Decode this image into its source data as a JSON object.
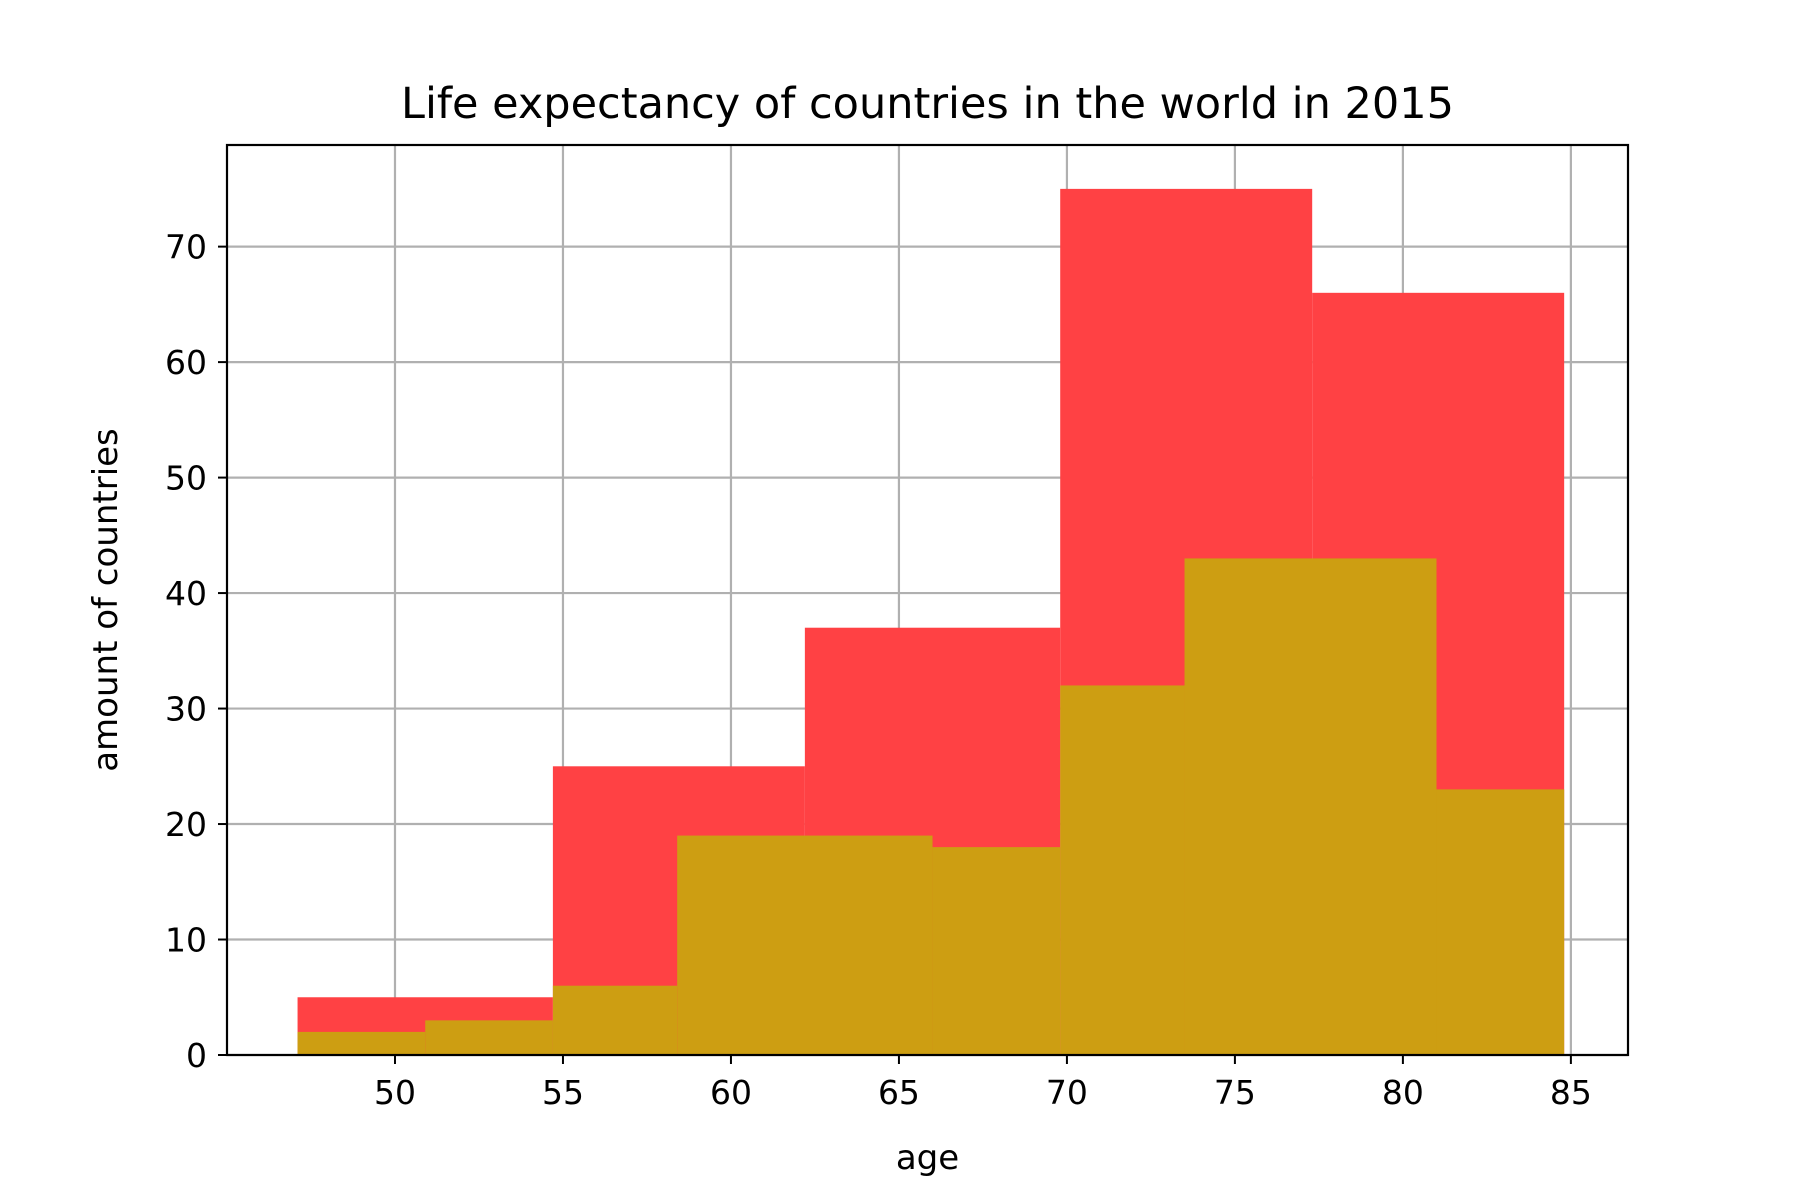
{
  "chart_data": {
    "type": "bar",
    "chart_kind": "histogram",
    "title": "Life expectancy of countries in the world in 2015",
    "xlabel": "age",
    "ylabel": "amount of countries",
    "xlim": [
      45.0,
      86.7
    ],
    "ylim": [
      0,
      78.8
    ],
    "xticks": [
      50,
      55,
      60,
      65,
      70,
      75,
      80,
      85
    ],
    "yticks": [
      0,
      10,
      20,
      30,
      40,
      50,
      60,
      70
    ],
    "grid": true,
    "legend": "none",
    "series": [
      {
        "color": "#ff4144",
        "bins": [
          {
            "x0": 47.1,
            "x1": 54.7,
            "count": 5
          },
          {
            "x0": 54.7,
            "x1": 62.2,
            "count": 25
          },
          {
            "x0": 62.2,
            "x1": 69.8,
            "count": 37
          },
          {
            "x0": 69.8,
            "x1": 77.3,
            "count": 75
          },
          {
            "x0": 77.3,
            "x1": 84.8,
            "count": 66
          }
        ]
      },
      {
        "color": "#cd9e12",
        "bins": [
          {
            "x0": 47.1,
            "x1": 50.9,
            "count": 2
          },
          {
            "x0": 50.9,
            "x1": 54.7,
            "count": 3
          },
          {
            "x0": 54.7,
            "x1": 58.4,
            "count": 6
          },
          {
            "x0": 58.4,
            "x1": 66.0,
            "count": 19
          },
          {
            "x0": 66.0,
            "x1": 69.8,
            "count": 18
          },
          {
            "x0": 69.8,
            "x1": 73.5,
            "count": 32
          },
          {
            "x0": 73.5,
            "x1": 81.0,
            "count": 43
          },
          {
            "x0": 81.0,
            "x1": 84.8,
            "count": 23
          }
        ]
      }
    ]
  }
}
